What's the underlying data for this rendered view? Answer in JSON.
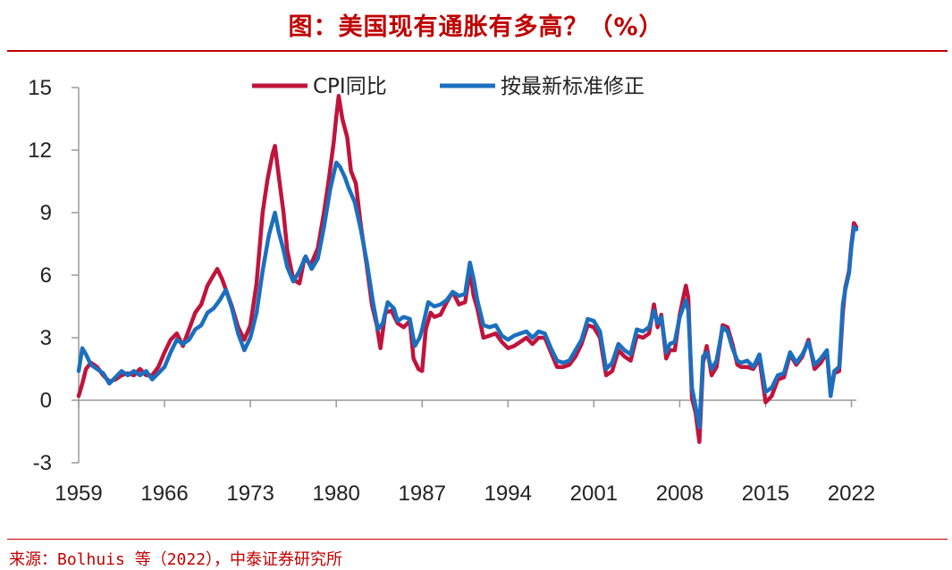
{
  "title": "图：美国现有通胀有多高？（%）",
  "source": "来源：Bolhuis 等（2022），中泰证券研究所",
  "chart_data": {
    "type": "line",
    "title": "",
    "xlabel": "",
    "ylabel": "",
    "xlim": [
      1959,
      2022.4
    ],
    "ylim": [
      -3,
      15
    ],
    "yticks": [
      "-3",
      "0",
      "3",
      "6",
      "9",
      "12",
      "15"
    ],
    "xticks": [
      "1959",
      "1966",
      "1973",
      "1980",
      "1987",
      "1994",
      "2001",
      "2008",
      "2015",
      "2022"
    ],
    "legend_position": "top-center",
    "series": [
      {
        "name": "CPI同比",
        "color": "#c0143c",
        "points": [
          [
            1959.0,
            0.2
          ],
          [
            1959.3,
            0.8
          ],
          [
            1959.6,
            1.5
          ],
          [
            1960.0,
            1.8
          ],
          [
            1960.5,
            1.6
          ],
          [
            1961.0,
            1.2
          ],
          [
            1961.5,
            0.9
          ],
          [
            1962.0,
            1.0
          ],
          [
            1962.5,
            1.2
          ],
          [
            1963.0,
            1.3
          ],
          [
            1963.5,
            1.2
          ],
          [
            1964.0,
            1.5
          ],
          [
            1964.5,
            1.2
          ],
          [
            1965.0,
            1.2
          ],
          [
            1965.5,
            1.6
          ],
          [
            1966.0,
            2.3
          ],
          [
            1966.5,
            2.9
          ],
          [
            1967.0,
            3.2
          ],
          [
            1967.5,
            2.6
          ],
          [
            1968.0,
            3.4
          ],
          [
            1968.5,
            4.2
          ],
          [
            1969.0,
            4.6
          ],
          [
            1969.5,
            5.5
          ],
          [
            1970.0,
            6.0
          ],
          [
            1970.3,
            6.3
          ],
          [
            1970.7,
            5.8
          ],
          [
            1971.0,
            5.3
          ],
          [
            1971.5,
            4.5
          ],
          [
            1972.0,
            3.5
          ],
          [
            1972.5,
            2.9
          ],
          [
            1973.0,
            3.6
          ],
          [
            1973.5,
            5.6
          ],
          [
            1974.0,
            9.0
          ],
          [
            1974.4,
            10.6
          ],
          [
            1974.8,
            11.8
          ],
          [
            1975.0,
            12.2
          ],
          [
            1975.3,
            10.8
          ],
          [
            1975.7,
            9.0
          ],
          [
            1976.0,
            7.2
          ],
          [
            1976.5,
            5.8
          ],
          [
            1977.0,
            5.6
          ],
          [
            1977.4,
            6.8
          ],
          [
            1977.8,
            6.6
          ],
          [
            1978.0,
            6.6
          ],
          [
            1978.5,
            7.3
          ],
          [
            1979.0,
            9.0
          ],
          [
            1979.4,
            10.6
          ],
          [
            1979.8,
            12.4
          ],
          [
            1980.0,
            13.6
          ],
          [
            1980.2,
            14.6
          ],
          [
            1980.5,
            13.5
          ],
          [
            1980.9,
            12.6
          ],
          [
            1981.2,
            11.0
          ],
          [
            1981.6,
            10.4
          ],
          [
            1982.0,
            8.4
          ],
          [
            1982.5,
            6.4
          ],
          [
            1982.9,
            4.6
          ],
          [
            1983.3,
            3.6
          ],
          [
            1983.6,
            2.5
          ],
          [
            1984.0,
            4.2
          ],
          [
            1984.5,
            4.3
          ],
          [
            1985.0,
            3.7
          ],
          [
            1985.5,
            3.5
          ],
          [
            1986.0,
            3.8
          ],
          [
            1986.3,
            2.0
          ],
          [
            1986.7,
            1.5
          ],
          [
            1987.0,
            1.4
          ],
          [
            1987.3,
            3.4
          ],
          [
            1987.7,
            4.2
          ],
          [
            1988.0,
            4.0
          ],
          [
            1988.5,
            4.1
          ],
          [
            1989.0,
            4.7
          ],
          [
            1989.5,
            5.2
          ],
          [
            1990.0,
            4.6
          ],
          [
            1990.5,
            4.7
          ],
          [
            1990.9,
            6.2
          ],
          [
            1991.2,
            5.0
          ],
          [
            1991.5,
            4.4
          ],
          [
            1992.0,
            3.0
          ],
          [
            1992.5,
            3.1
          ],
          [
            1993.0,
            3.2
          ],
          [
            1993.5,
            2.8
          ],
          [
            1994.0,
            2.5
          ],
          [
            1994.5,
            2.6
          ],
          [
            1995.0,
            2.8
          ],
          [
            1995.5,
            3.0
          ],
          [
            1996.0,
            2.7
          ],
          [
            1996.5,
            3.0
          ],
          [
            1997.0,
            3.0
          ],
          [
            1997.5,
            2.3
          ],
          [
            1998.0,
            1.6
          ],
          [
            1998.5,
            1.6
          ],
          [
            1999.0,
            1.7
          ],
          [
            1999.5,
            2.1
          ],
          [
            2000.0,
            2.7
          ],
          [
            2000.5,
            3.6
          ],
          [
            2001.0,
            3.5
          ],
          [
            2001.5,
            3.0
          ],
          [
            2002.0,
            1.2
          ],
          [
            2002.5,
            1.4
          ],
          [
            2003.0,
            2.4
          ],
          [
            2003.5,
            2.1
          ],
          [
            2004.0,
            1.9
          ],
          [
            2004.5,
            3.1
          ],
          [
            2005.0,
            3.0
          ],
          [
            2005.5,
            3.2
          ],
          [
            2005.9,
            4.6
          ],
          [
            2006.2,
            3.5
          ],
          [
            2006.5,
            4.1
          ],
          [
            2006.9,
            2.0
          ],
          [
            2007.2,
            2.4
          ],
          [
            2007.6,
            2.4
          ],
          [
            2008.0,
            4.1
          ],
          [
            2008.5,
            5.5
          ],
          [
            2008.7,
            4.9
          ],
          [
            2009.0,
            0.1
          ],
          [
            2009.3,
            -0.6
          ],
          [
            2009.6,
            -2.0
          ],
          [
            2009.9,
            1.8
          ],
          [
            2010.2,
            2.6
          ],
          [
            2010.6,
            1.2
          ],
          [
            2011.0,
            1.6
          ],
          [
            2011.5,
            3.6
          ],
          [
            2011.9,
            3.5
          ],
          [
            2012.3,
            2.7
          ],
          [
            2012.7,
            1.7
          ],
          [
            2013.0,
            1.6
          ],
          [
            2013.5,
            1.6
          ],
          [
            2014.0,
            1.5
          ],
          [
            2014.5,
            2.0
          ],
          [
            2015.0,
            -0.1
          ],
          [
            2015.5,
            0.2
          ],
          [
            2016.0,
            1.0
          ],
          [
            2016.5,
            1.1
          ],
          [
            2017.0,
            2.2
          ],
          [
            2017.5,
            1.7
          ],
          [
            2018.0,
            2.1
          ],
          [
            2018.5,
            2.9
          ],
          [
            2019.0,
            1.5
          ],
          [
            2019.5,
            1.8
          ],
          [
            2020.0,
            2.3
          ],
          [
            2020.3,
            0.3
          ],
          [
            2020.6,
            1.3
          ],
          [
            2021.0,
            1.4
          ],
          [
            2021.3,
            4.2
          ],
          [
            2021.5,
            5.4
          ],
          [
            2021.8,
            6.2
          ],
          [
            2022.0,
            7.5
          ],
          [
            2022.2,
            8.5
          ],
          [
            2022.4,
            8.3
          ]
        ]
      },
      {
        "name": "按最新标准修正",
        "color": "#1b6fbf",
        "points": [
          [
            1959.0,
            1.4
          ],
          [
            1959.3,
            2.5
          ],
          [
            1959.6,
            2.2
          ],
          [
            1960.0,
            1.7
          ],
          [
            1960.5,
            1.5
          ],
          [
            1961.0,
            1.3
          ],
          [
            1961.5,
            0.8
          ],
          [
            1962.0,
            1.1
          ],
          [
            1962.5,
            1.4
          ],
          [
            1963.0,
            1.2
          ],
          [
            1963.5,
            1.4
          ],
          [
            1964.0,
            1.2
          ],
          [
            1964.5,
            1.4
          ],
          [
            1965.0,
            1.0
          ],
          [
            1965.5,
            1.3
          ],
          [
            1966.0,
            1.6
          ],
          [
            1966.5,
            2.3
          ],
          [
            1967.0,
            2.9
          ],
          [
            1967.5,
            2.7
          ],
          [
            1968.0,
            2.9
          ],
          [
            1968.5,
            3.4
          ],
          [
            1969.0,
            3.6
          ],
          [
            1969.5,
            4.2
          ],
          [
            1970.0,
            4.4
          ],
          [
            1970.5,
            4.8
          ],
          [
            1971.0,
            5.3
          ],
          [
            1971.5,
            4.4
          ],
          [
            1972.0,
            3.2
          ],
          [
            1972.5,
            2.4
          ],
          [
            1973.0,
            3.0
          ],
          [
            1973.5,
            4.2
          ],
          [
            1974.0,
            6.2
          ],
          [
            1974.5,
            7.9
          ],
          [
            1975.0,
            9.0
          ],
          [
            1975.3,
            8.1
          ],
          [
            1975.7,
            7.2
          ],
          [
            1976.0,
            6.4
          ],
          [
            1976.5,
            5.7
          ],
          [
            1977.0,
            6.2
          ],
          [
            1977.5,
            6.9
          ],
          [
            1978.0,
            6.3
          ],
          [
            1978.5,
            6.8
          ],
          [
            1979.0,
            8.3
          ],
          [
            1979.5,
            10.1
          ],
          [
            1980.0,
            11.4
          ],
          [
            1980.3,
            11.2
          ],
          [
            1980.7,
            10.7
          ],
          [
            1981.0,
            10.2
          ],
          [
            1981.5,
            9.5
          ],
          [
            1982.0,
            8.2
          ],
          [
            1982.5,
            6.6
          ],
          [
            1983.0,
            4.7
          ],
          [
            1983.4,
            3.4
          ],
          [
            1983.8,
            3.7
          ],
          [
            1984.2,
            4.7
          ],
          [
            1984.7,
            4.4
          ],
          [
            1985.0,
            3.8
          ],
          [
            1985.5,
            4.0
          ],
          [
            1986.0,
            3.9
          ],
          [
            1986.4,
            2.6
          ],
          [
            1986.8,
            3.0
          ],
          [
            1987.0,
            3.4
          ],
          [
            1987.5,
            4.7
          ],
          [
            1988.0,
            4.5
          ],
          [
            1988.5,
            4.6
          ],
          [
            1989.0,
            4.8
          ],
          [
            1989.5,
            5.2
          ],
          [
            1990.0,
            5.0
          ],
          [
            1990.5,
            5.1
          ],
          [
            1990.9,
            6.6
          ],
          [
            1991.2,
            5.8
          ],
          [
            1991.5,
            4.8
          ],
          [
            1992.0,
            3.6
          ],
          [
            1992.5,
            3.5
          ],
          [
            1993.0,
            3.6
          ],
          [
            1993.5,
            3.1
          ],
          [
            1994.0,
            2.9
          ],
          [
            1994.5,
            3.1
          ],
          [
            1995.0,
            3.2
          ],
          [
            1995.5,
            3.3
          ],
          [
            1996.0,
            3.0
          ],
          [
            1996.5,
            3.3
          ],
          [
            1997.0,
            3.2
          ],
          [
            1997.5,
            2.5
          ],
          [
            1998.0,
            1.9
          ],
          [
            1998.5,
            1.8
          ],
          [
            1999.0,
            1.9
          ],
          [
            1999.5,
            2.4
          ],
          [
            2000.0,
            2.9
          ],
          [
            2000.5,
            3.9
          ],
          [
            2001.0,
            3.8
          ],
          [
            2001.5,
            3.3
          ],
          [
            2002.0,
            1.5
          ],
          [
            2002.5,
            1.8
          ],
          [
            2003.0,
            2.7
          ],
          [
            2003.5,
            2.4
          ],
          [
            2004.0,
            2.2
          ],
          [
            2004.5,
            3.4
          ],
          [
            2005.0,
            3.3
          ],
          [
            2005.5,
            3.5
          ],
          [
            2005.9,
            4.3
          ],
          [
            2006.2,
            3.7
          ],
          [
            2006.5,
            4.0
          ],
          [
            2006.9,
            2.3
          ],
          [
            2007.2,
            2.7
          ],
          [
            2007.6,
            2.8
          ],
          [
            2008.0,
            4.0
          ],
          [
            2008.5,
            4.8
          ],
          [
            2008.7,
            4.3
          ],
          [
            2009.0,
            0.6
          ],
          [
            2009.3,
            -0.3
          ],
          [
            2009.6,
            -1.3
          ],
          [
            2009.9,
            2.1
          ],
          [
            2010.2,
            2.3
          ],
          [
            2010.6,
            1.5
          ],
          [
            2011.0,
            1.9
          ],
          [
            2011.5,
            3.5
          ],
          [
            2011.9,
            3.3
          ],
          [
            2012.3,
            2.5
          ],
          [
            2012.7,
            1.9
          ],
          [
            2013.0,
            1.8
          ],
          [
            2013.5,
            1.9
          ],
          [
            2014.0,
            1.6
          ],
          [
            2014.5,
            2.2
          ],
          [
            2015.0,
            0.4
          ],
          [
            2015.5,
            0.6
          ],
          [
            2016.0,
            1.2
          ],
          [
            2016.5,
            1.3
          ],
          [
            2017.0,
            2.3
          ],
          [
            2017.5,
            1.8
          ],
          [
            2018.0,
            2.2
          ],
          [
            2018.5,
            2.8
          ],
          [
            2019.0,
            1.7
          ],
          [
            2019.5,
            2.0
          ],
          [
            2020.0,
            2.4
          ],
          [
            2020.3,
            0.2
          ],
          [
            2020.6,
            1.4
          ],
          [
            2021.0,
            1.6
          ],
          [
            2021.3,
            4.6
          ],
          [
            2021.5,
            5.3
          ],
          [
            2021.8,
            6.1
          ],
          [
            2022.0,
            7.4
          ],
          [
            2022.2,
            8.3
          ],
          [
            2022.4,
            8.2
          ]
        ]
      }
    ]
  }
}
